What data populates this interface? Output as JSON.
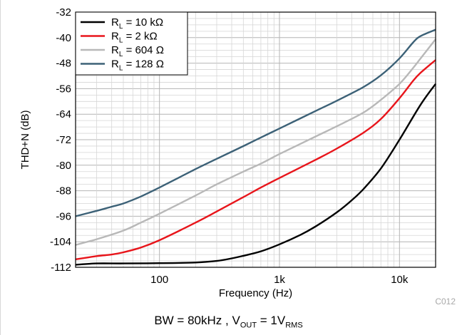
{
  "chart_data": {
    "type": "line",
    "x_scale": "log",
    "xlabel": "Frequency (Hz)",
    "ylabel": "THD+N (dB)",
    "xlim": [
      20,
      20000
    ],
    "ylim": [
      -112,
      -32
    ],
    "x_ticks": [
      {
        "value": 100,
        "label": "100"
      },
      {
        "value": 1000,
        "label": "1k"
      },
      {
        "value": 10000,
        "label": "10k"
      }
    ],
    "y_ticks": [
      -32,
      -40,
      -48,
      -56,
      -64,
      -72,
      -80,
      -88,
      -96,
      -104,
      -112
    ],
    "grid": true,
    "legend_position": "top-left",
    "series": [
      {
        "label_main": "R",
        "label_sub": "L",
        "label_rest": " = 10 kΩ",
        "color": "#000000",
        "points": [
          [
            20,
            -111.2
          ],
          [
            30,
            -110.8
          ],
          [
            50,
            -110.8
          ],
          [
            100,
            -110.7
          ],
          [
            200,
            -110.5
          ],
          [
            300,
            -110.0
          ],
          [
            400,
            -109.2
          ],
          [
            500,
            -108.4
          ],
          [
            700,
            -107.0
          ],
          [
            1000,
            -104.8
          ],
          [
            1500,
            -101.8
          ],
          [
            2000,
            -99.2
          ],
          [
            3000,
            -94.8
          ],
          [
            4000,
            -91.0
          ],
          [
            5000,
            -87.5
          ],
          [
            7000,
            -81.0
          ],
          [
            10000,
            -72.0
          ],
          [
            15000,
            -61.0
          ],
          [
            20000,
            -54.5
          ]
        ]
      },
      {
        "label_main": "R",
        "label_sub": "L",
        "label_rest": " = 2 kΩ",
        "color": "#e8151b",
        "points": [
          [
            20,
            -109.5
          ],
          [
            30,
            -108.5
          ],
          [
            40,
            -108.0
          ],
          [
            50,
            -107.3
          ],
          [
            70,
            -105.8
          ],
          [
            100,
            -103.5
          ],
          [
            200,
            -98.0
          ],
          [
            300,
            -94.5
          ],
          [
            500,
            -90.0
          ],
          [
            700,
            -87.0
          ],
          [
            1000,
            -84.0
          ],
          [
            2000,
            -78.3
          ],
          [
            3000,
            -74.8
          ],
          [
            5000,
            -69.8
          ],
          [
            7000,
            -65.5
          ],
          [
            10000,
            -59.0
          ],
          [
            13000,
            -53.5
          ],
          [
            15000,
            -51.0
          ],
          [
            20000,
            -47.0
          ]
        ]
      },
      {
        "label_main": "R",
        "label_sub": "L",
        "label_rest": " = 604 Ω",
        "color": "#b8b8b8",
        "points": [
          [
            20,
            -105.0
          ],
          [
            30,
            -103.2
          ],
          [
            50,
            -100.5
          ],
          [
            70,
            -98.0
          ],
          [
            100,
            -95.2
          ],
          [
            200,
            -89.5
          ],
          [
            300,
            -86.0
          ],
          [
            500,
            -82.0
          ],
          [
            700,
            -79.5
          ],
          [
            1000,
            -76.5
          ],
          [
            2000,
            -71.0
          ],
          [
            3000,
            -67.8
          ],
          [
            5000,
            -63.5
          ],
          [
            7000,
            -59.5
          ],
          [
            10000,
            -54.5
          ],
          [
            13000,
            -49.5
          ],
          [
            15000,
            -46.5
          ],
          [
            20000,
            -40.5
          ]
        ]
      },
      {
        "label_main": "R",
        "label_sub": "L",
        "label_rest": " = 128 Ω",
        "color": "#3c6177",
        "points": [
          [
            20,
            -96.0
          ],
          [
            30,
            -94.3
          ],
          [
            40,
            -93.0
          ],
          [
            50,
            -92.0
          ],
          [
            70,
            -89.8
          ],
          [
            100,
            -87.0
          ],
          [
            200,
            -81.2
          ],
          [
            300,
            -78.0
          ],
          [
            500,
            -74.0
          ],
          [
            700,
            -71.3
          ],
          [
            1000,
            -68.5
          ],
          [
            2000,
            -63.0
          ],
          [
            3000,
            -59.8
          ],
          [
            5000,
            -55.5
          ],
          [
            7000,
            -51.8
          ],
          [
            10000,
            -46.5
          ],
          [
            13000,
            -41.5
          ],
          [
            15000,
            -39.5
          ],
          [
            20000,
            -37.5
          ]
        ]
      }
    ]
  },
  "figure_code": "C012",
  "caption": {
    "bw": "BW = 80kHz",
    "sep": ",",
    "vout_main": "V",
    "vout_sub": "OUT",
    "vout_eq": " = 1V",
    "vout_unit_sub": "RMS"
  }
}
